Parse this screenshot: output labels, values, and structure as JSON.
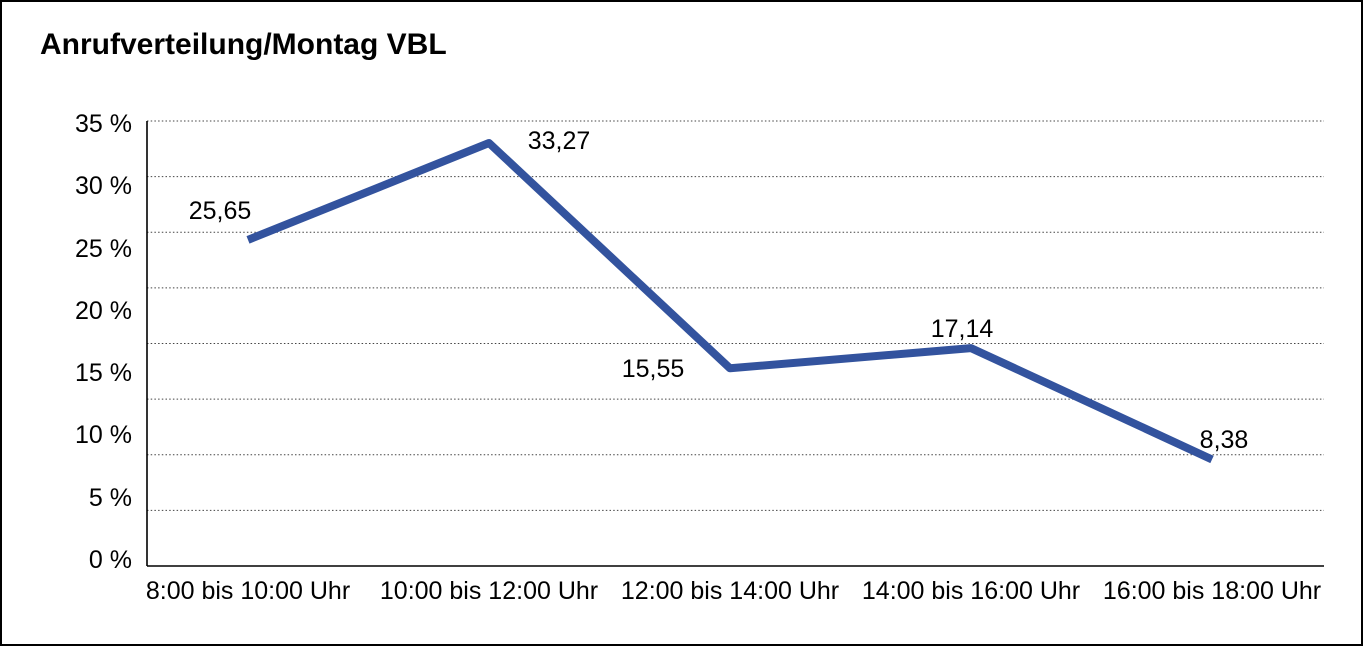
{
  "title": "Anrufverteilung/Montag VBL",
  "chart_data": {
    "type": "line",
    "title": "Anrufverteilung/Montag VBL",
    "categories": [
      "8:00 bis 10:00 Uhr",
      "10:00 bis 12:00 Uhr",
      "12:00 bis 14:00 Uhr",
      "14:00 bis 16:00 Uhr",
      "16:00 bis 18:00 Uhr"
    ],
    "values": [
      25.65,
      33.27,
      15.55,
      17.14,
      8.38
    ],
    "value_labels": [
      "25,65",
      "33,27",
      "15,55",
      "17,14",
      "8,38"
    ],
    "unit": "%",
    "ylabel": "",
    "xlabel": "",
    "ylim": [
      0,
      35
    ],
    "y_tick_labels": [
      "35 %",
      "30 %",
      "25 %",
      "20 %",
      "15 %",
      "10 %",
      "5 %",
      "0 %"
    ],
    "grid": "horizontal-dotted",
    "legend": "none",
    "line_color": "#33539E",
    "text_color": "#000000",
    "background_color": "#ffffff"
  }
}
